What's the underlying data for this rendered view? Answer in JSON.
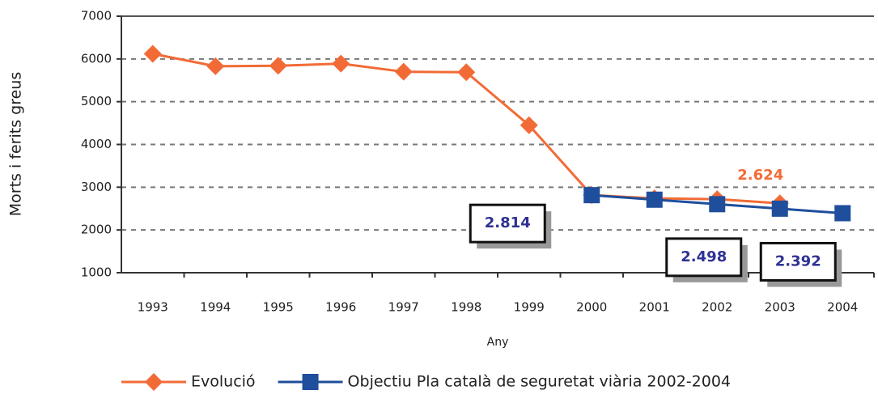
{
  "chart_data": {
    "type": "line",
    "y_label": "Morts i ferits greus",
    "x_label": "Any",
    "categories": [
      "1993",
      "1994",
      "1995",
      "1996",
      "1997",
      "1998",
      "1999",
      "2000",
      "2001",
      "2002",
      "2003",
      "2004"
    ],
    "series": [
      {
        "name": "Evolució",
        "color": "#f26b36",
        "marker": "diamond",
        "values": [
          6120,
          5830,
          5840,
          5890,
          5700,
          5690,
          4450,
          2814,
          2740,
          2720,
          2624,
          null
        ],
        "value_labels": [
          null,
          null,
          null,
          null,
          null,
          null,
          null,
          null,
          null,
          null,
          "2.624",
          null
        ]
      },
      {
        "name": "Objectiu Pla català de seguretat viària 2002-2004",
        "color": "#1f4e9c",
        "marker": "square",
        "values": [
          null,
          null,
          null,
          null,
          null,
          null,
          null,
          2814,
          2708,
          2603,
          2498,
          2392
        ],
        "value_labels": [
          null,
          null,
          null,
          null,
          null,
          null,
          null,
          "2.814",
          null,
          null,
          "2.498",
          "2.392"
        ]
      }
    ],
    "ylim": [
      1000,
      7000
    ],
    "yticks": [
      1000,
      2000,
      3000,
      4000,
      5000,
      6000,
      7000
    ],
    "grid": true,
    "legend": "bottom"
  }
}
